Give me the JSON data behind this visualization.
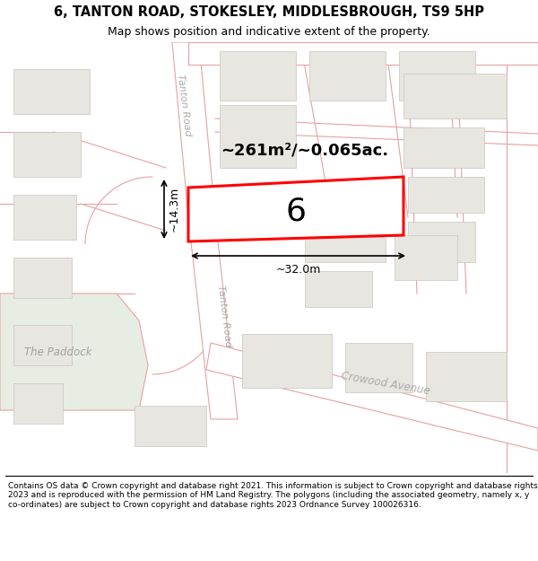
{
  "title_line1": "6, TANTON ROAD, STOKESLEY, MIDDLESBROUGH, TS9 5HP",
  "title_line2": "Map shows position and indicative extent of the property.",
  "footer_text": "Contains OS data © Crown copyright and database right 2021. This information is subject to Crown copyright and database rights 2023 and is reproduced with the permission of HM Land Registry. The polygons (including the associated geometry, namely x, y co-ordinates) are subject to Crown copyright and database rights 2023 Ordnance Survey 100026316.",
  "map_bg": "#ffffff",
  "building_fill": "#e8e6e0",
  "building_edge": "#c8c5be",
  "road_line_color": "#e8a0a0",
  "highlight_color": "#ff0000",
  "green_area_color": "#e8ede4",
  "area_text": "~261m²/~0.065ac.",
  "number_text": "6",
  "dim_width": "~32.0m",
  "dim_height": "~14.3m",
  "label_tanton_road_upper": "Tanton Road",
  "label_tanton_road_lower": "Tanton Road",
  "label_crowood": "Crowood Avenue",
  "label_paddock": "The Paddock",
  "title_fontsize": 10.5,
  "subtitle_fontsize": 9.0,
  "footer_fontsize": 6.5
}
